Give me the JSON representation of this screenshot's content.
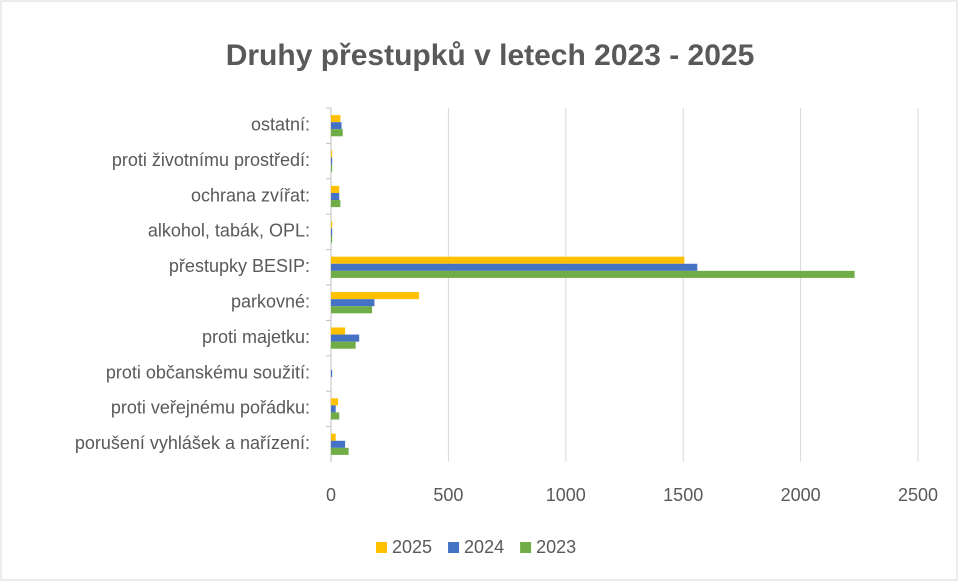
{
  "chart_data": {
    "type": "bar",
    "orientation": "horizontal",
    "title": "Druhy přestupků v letech 2023 - 2025",
    "categories": [
      "porušení vyhlášek a nařízení:",
      "proti veřejnému pořádku:",
      "proti občanskému soužití:",
      "proti majetku:",
      "parkovné:",
      "přestupky BESIP:",
      "alkohol, tabák, OPL:",
      "ochrana zvířat:",
      "proti životnímu prostředí:",
      "ostatní:"
    ],
    "series": [
      {
        "name": "2025",
        "color": "#ffc000",
        "values": [
          20,
          30,
          0,
          60,
          375,
          1505,
          5,
          35,
          5,
          40
        ]
      },
      {
        "name": "2024",
        "color": "#4472c4",
        "values": [
          60,
          20,
          5,
          120,
          185,
          1560,
          5,
          35,
          5,
          45
        ]
      },
      {
        "name": "2023",
        "color": "#70ad47",
        "values": [
          75,
          35,
          0,
          105,
          175,
          2230,
          5,
          40,
          5,
          50
        ]
      }
    ],
    "xlim": [
      0,
      2500
    ],
    "xticks": [
      0,
      500,
      1000,
      1500,
      2000,
      2500
    ],
    "grid": true,
    "legend": "bottom"
  }
}
